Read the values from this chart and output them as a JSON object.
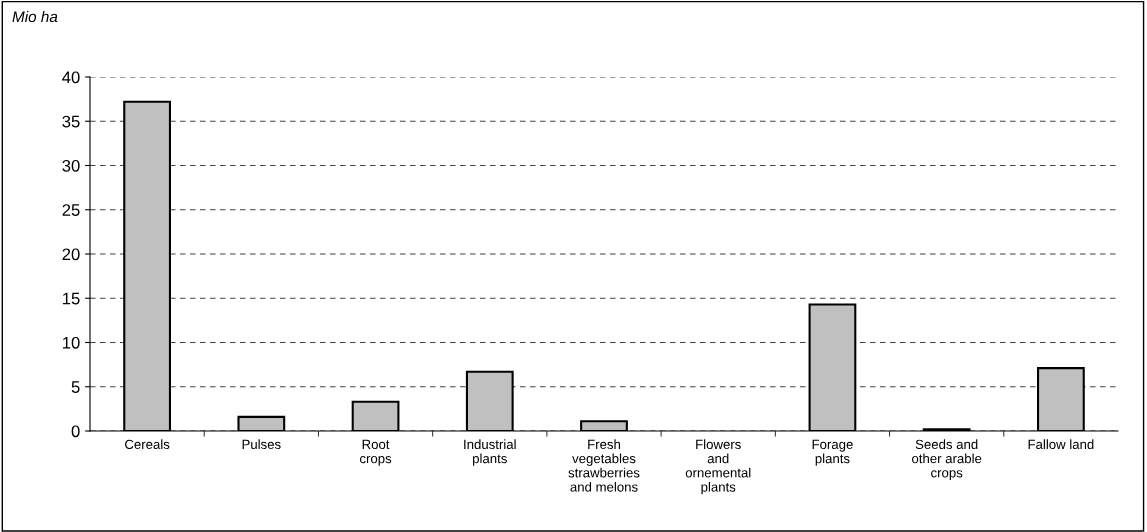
{
  "chart_data": {
    "type": "bar",
    "ylabel": "Mio ha",
    "categories": [
      "Cereals",
      "Pulses",
      "Root\ncrops",
      "Industrial\nplants",
      "Fresh\nvegetables\nstrawberries\nand melons",
      "Flowers\nand\nornemental\nplants",
      "Forage\nplants",
      "Seeds and\nother arable\ncrops",
      "Fallow land"
    ],
    "values": [
      37.2,
      1.6,
      3.3,
      6.7,
      1.1,
      0,
      14.3,
      0.2,
      7.1
    ],
    "color": "#c0c0c0",
    "ylim": [
      0,
      40
    ],
    "yticks": [
      0,
      5,
      10,
      15,
      20,
      25,
      30,
      35,
      40
    ],
    "grid": "y"
  }
}
